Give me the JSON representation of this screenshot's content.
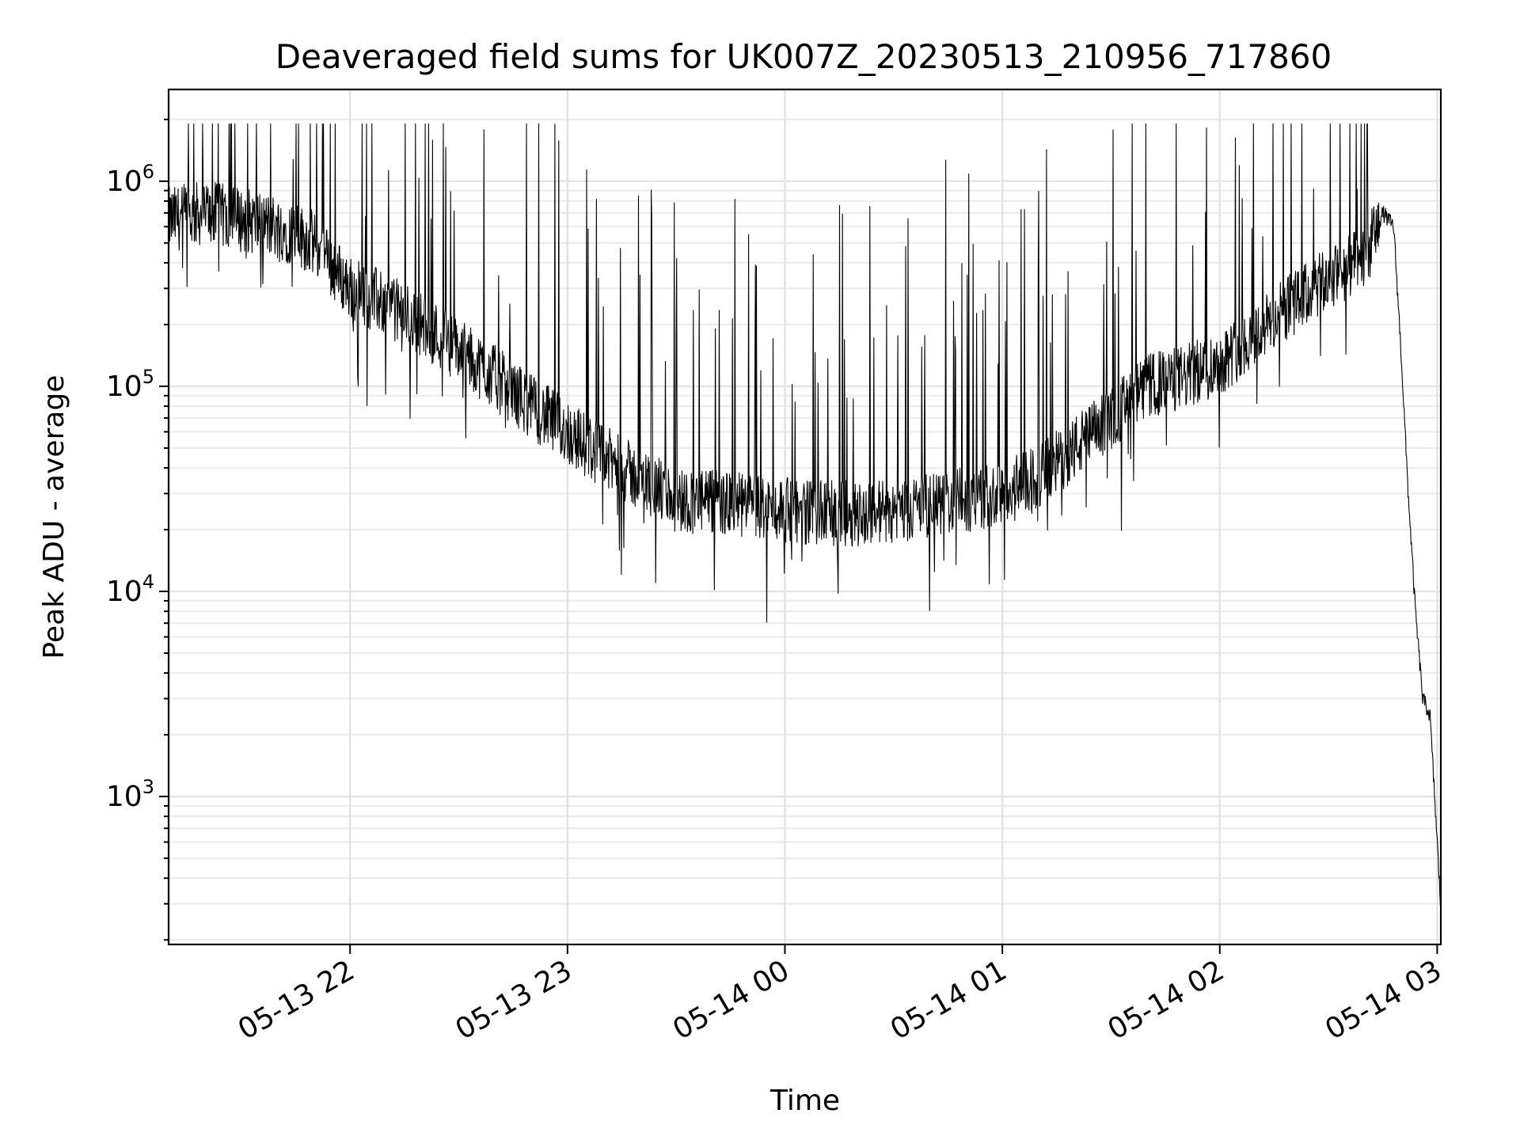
{
  "chart_data": {
    "type": "line",
    "title": "Deaveraged field sums for UK007Z_20230513_210956_717860",
    "xlabel": "Time",
    "ylabel": "Peak ADU - average",
    "yscale": "log",
    "xlim": [
      "2023-05-13 21:09:56",
      "2023-05-14 03:01:00"
    ],
    "ylim": [
      190,
      2800000
    ],
    "grid": true,
    "line_color": "#000000",
    "x_ticks": [
      {
        "value": "2023-05-13 22:00",
        "label": "05-13 22"
      },
      {
        "value": "2023-05-13 23:00",
        "label": "05-13 23"
      },
      {
        "value": "2023-05-14 00:00",
        "label": "05-14 00"
      },
      {
        "value": "2023-05-14 01:00",
        "label": "05-14 01"
      },
      {
        "value": "2023-05-14 02:00",
        "label": "05-14 02"
      },
      {
        "value": "2023-05-14 03:00",
        "label": "05-14 03"
      }
    ],
    "y_ticks": [
      {
        "value": 1000,
        "base": "10",
        "exp": "3"
      },
      {
        "value": 10000,
        "base": "10",
        "exp": "4"
      },
      {
        "value": 100000,
        "base": "10",
        "exp": "5"
      },
      {
        "value": 1000000,
        "base": "10",
        "exp": "6"
      }
    ],
    "series": [
      {
        "x": [
          "2023-05-13 21:10",
          "2023-05-13 21:20",
          "2023-05-13 21:30",
          "2023-05-13 21:40",
          "2023-05-13 21:50",
          "2023-05-13 22:00",
          "2023-05-13 22:10",
          "2023-05-13 22:20",
          "2023-05-13 22:30",
          "2023-05-13 22:40",
          "2023-05-13 22:50",
          "2023-05-13 23:00",
          "2023-05-13 23:10",
          "2023-05-13 23:20",
          "2023-05-13 23:30",
          "2023-05-13 23:40",
          "2023-05-13 23:50",
          "2023-05-14 00:00",
          "2023-05-14 00:10",
          "2023-05-14 00:20",
          "2023-05-14 00:30",
          "2023-05-14 00:40",
          "2023-05-14 00:50",
          "2023-05-14 01:00",
          "2023-05-14 01:10",
          "2023-05-14 01:20",
          "2023-05-14 01:30",
          "2023-05-14 01:40",
          "2023-05-14 01:50",
          "2023-05-14 02:00",
          "2023-05-14 02:10",
          "2023-05-14 02:20",
          "2023-05-14 02:30",
          "2023-05-14 02:40",
          "2023-05-14 02:45",
          "2023-05-14 02:48",
          "2023-05-14 02:50",
          "2023-05-14 02:52",
          "2023-05-14 02:54",
          "2023-05-14 02:56",
          "2023-05-14 02:58",
          "2023-05-14 03:00",
          "2023-05-14 03:01"
        ],
        "values": [
          650000,
          700000,
          650000,
          600000,
          500000,
          300000,
          250000,
          200000,
          150000,
          110000,
          80000,
          60000,
          45000,
          35000,
          28000,
          27000,
          26000,
          25000,
          24000,
          24000,
          25000,
          26000,
          28000,
          30000,
          36000,
          50000,
          70000,
          100000,
          110000,
          130000,
          180000,
          250000,
          330000,
          420000,
          700000,
          600000,
          150000,
          30000,
          8000,
          3000,
          2500,
          600,
          280
        ]
      }
    ]
  }
}
